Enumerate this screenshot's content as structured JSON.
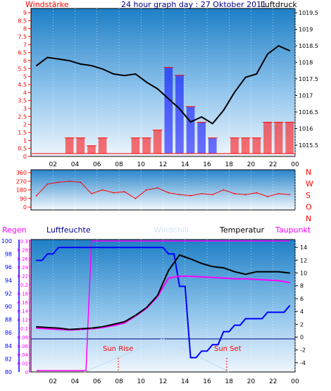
{
  "title": "24 hour graph day : 27 Oktober 2011",
  "colors": {
    "red": "#ff0000",
    "blue": "#0000ff",
    "black": "#000000",
    "magenta": "#ff00ff",
    "navy": "#00008b",
    "sky_light": "#ddeeff",
    "sky_dark": "#1e7fc6"
  },
  "x_labels": [
    "02",
    "04",
    "06",
    "08",
    "10",
    "12",
    "14",
    "16",
    "18",
    "20",
    "22",
    "00"
  ],
  "panel1": {
    "left_label": "Windstärke",
    "right_label": "Luftdruck",
    "left_ticks": [
      "9",
      "8.5",
      "8",
      "7.5",
      "7",
      "6.5",
      "6",
      "5.5",
      "5",
      "4.5",
      "4",
      "3.5",
      "3",
      "2.5",
      "2",
      "1.5",
      "1",
      "0.5",
      "0"
    ],
    "right_ticks": [
      "1019.5",
      "1019",
      "1018.5",
      "1018",
      "1017.5",
      "1017",
      "1016.5",
      "1016",
      "1015.5"
    ]
  },
  "panel2": {
    "left_ticks": [
      "360",
      "270",
      "180",
      "90",
      "0"
    ],
    "compass": [
      "N",
      "W",
      "S",
      "O",
      "N"
    ]
  },
  "panel3": {
    "labels": {
      "rain": "Regen",
      "humidity": "Luftfeuchte",
      "windchill": "Windchill",
      "temperature": "Temperatur",
      "dewpoint": "Taupunkt"
    },
    "humidity_ticks": [
      "100",
      "98",
      "96",
      "94",
      "92",
      "90",
      "88",
      "86",
      "84",
      "82",
      "80"
    ],
    "rain_ticks": [
      "0.3",
      "0.28",
      "0.26",
      "0.24",
      "0.22",
      "0.2",
      "0.18",
      "0.16",
      "0.14",
      "0.12",
      "0.1",
      "0.08",
      "0.06",
      "0.04",
      "0.02",
      "0"
    ],
    "temp_ticks": [
      "14",
      "12",
      "10",
      "8",
      "6",
      "4",
      "2",
      "0",
      "-2",
      "-4"
    ],
    "sun_rise": "Sun Rise",
    "sun_set": "Sun Set"
  },
  "chart_data": [
    {
      "type": "line",
      "name_hint": "pressure_and_wind",
      "x": [
        "01",
        "02",
        "03",
        "04",
        "05",
        "06",
        "07",
        "08",
        "09",
        "10",
        "11",
        "12",
        "13",
        "14",
        "15",
        "16",
        "17",
        "18",
        "19",
        "20",
        "21",
        "22",
        "23",
        "00"
      ],
      "series": [
        {
          "name": "Luftdruck",
          "axis": "right",
          "values": [
            1018.0,
            1018.25,
            1018.2,
            1018.15,
            1018.05,
            1018.0,
            1017.9,
            1017.75,
            1017.7,
            1017.75,
            1017.5,
            1017.3,
            1017.0,
            1016.7,
            1016.3,
            1016.45,
            1016.25,
            1016.65,
            1017.2,
            1017.65,
            1017.75,
            1018.35,
            1018.6,
            1018.45
          ]
        },
        {
          "name": "Windstärke",
          "axis": "left",
          "values": [
            0,
            0,
            0,
            1,
            1,
            0.5,
            1,
            0,
            0,
            1,
            1,
            1.5,
            5.5,
            5,
            3,
            2,
            1,
            0,
            1,
            1,
            1,
            2,
            2,
            2
          ]
        }
      ],
      "ylim_left": [
        0,
        9
      ],
      "ylim_right": [
        1015.2,
        1019.6
      ]
    },
    {
      "type": "line",
      "name_hint": "wind_direction",
      "x": [
        "01",
        "02",
        "03",
        "04",
        "05",
        "06",
        "07",
        "08",
        "09",
        "10",
        "11",
        "12",
        "13",
        "14",
        "15",
        "16",
        "17",
        "18",
        "19",
        "20",
        "21",
        "22",
        "23",
        "00"
      ],
      "series": [
        {
          "name": "direction",
          "values": [
            120,
            240,
            260,
            270,
            260,
            140,
            180,
            150,
            160,
            90,
            180,
            200,
            150,
            130,
            120,
            140,
            130,
            180,
            140,
            130,
            150,
            110,
            140,
            130
          ]
        }
      ],
      "ylim": [
        0,
        360
      ]
    },
    {
      "type": "line",
      "name_hint": "temperature_humidity",
      "x": [
        "01",
        "02",
        "03",
        "04",
        "05",
        "06",
        "07",
        "08",
        "09",
        "10",
        "11",
        "12",
        "13",
        "14",
        "15",
        "16",
        "17",
        "18",
        "19",
        "20",
        "21",
        "22",
        "23",
        "00"
      ],
      "series": [
        {
          "name": "Temperatur",
          "axis": "temp",
          "values": [
            1.6,
            1.5,
            1.4,
            1.2,
            1.3,
            1.4,
            1.6,
            2.0,
            2.4,
            3.4,
            4.6,
            6.5,
            10.4,
            12.8,
            12.2,
            11.5,
            11.0,
            10.8,
            10.2,
            9.8,
            10.2,
            10.2,
            10.2,
            10.0
          ]
        },
        {
          "name": "Taupunkt",
          "axis": "temp",
          "values": [
            1.4,
            1.3,
            1.2,
            1.1,
            1.2,
            1.3,
            1.5,
            1.8,
            2.2,
            3.3,
            4.5,
            6.3,
            9.2,
            9.5,
            9.5,
            9.4,
            9.3,
            9.2,
            9.1,
            9.1,
            9.0,
            8.9,
            8.8,
            8.5
          ]
        },
        {
          "name": "Luftfeuchte",
          "axis": "humidity",
          "values": [
            97,
            98,
            99,
            99,
            99,
            99,
            99,
            99,
            99,
            99,
            99,
            99,
            98,
            93,
            82,
            83,
            84,
            86,
            87,
            88,
            88,
            89,
            89,
            90
          ]
        },
        {
          "name": "Regen",
          "axis": "rain",
          "values": [
            0,
            0,
            0,
            0,
            0,
            0.3,
            0.3,
            0.3,
            0.3,
            0.3,
            0.3,
            0.3,
            0.3,
            0.3,
            0.3,
            0.3,
            0.3,
            0.3,
            0.3,
            0.3,
            0.3,
            0.3,
            0.3,
            0.3
          ]
        }
      ],
      "ylim_temp": [
        -5,
        15
      ],
      "ylim_humidity": [
        80,
        100
      ],
      "ylim_rain": [
        0,
        0.3
      ]
    }
  ]
}
